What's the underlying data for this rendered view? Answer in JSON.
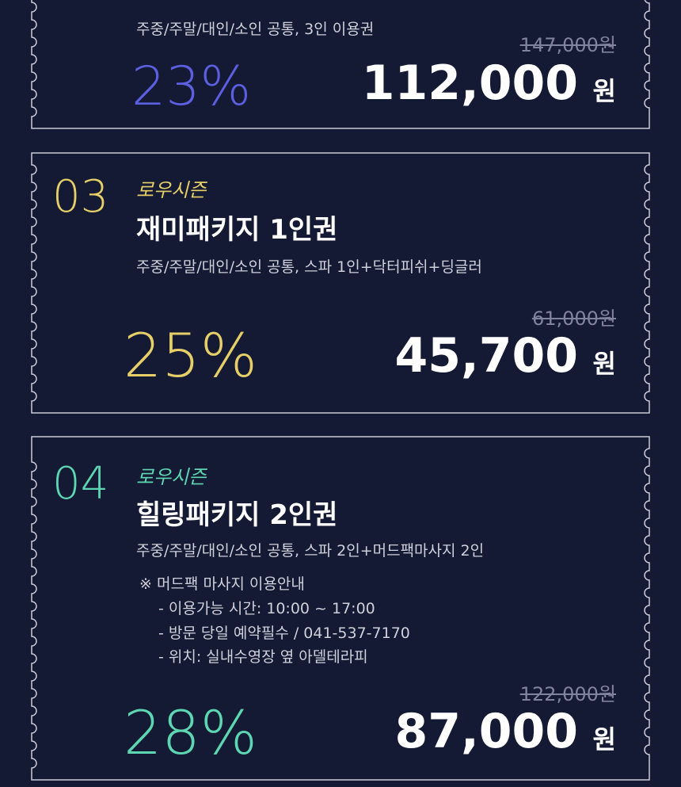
{
  "cards": [
    {
      "description": "주중/주말/대인/소인 공통, 3인 이용권",
      "original_price": "147,000원",
      "price": "112,000",
      "price_unit": "원",
      "discount": "23%"
    },
    {
      "number": "03",
      "tag": "로우시즌",
      "title": "재미패키지 1인권",
      "description": "주중/주말/대인/소인 공통, 스파 1인+닥터피쉬+딩글러",
      "original_price": "61,000원",
      "price": "45,700",
      "price_unit": "원",
      "discount": "25%"
    },
    {
      "number": "04",
      "tag": "로우시즌",
      "title": "힐링패키지 2인권",
      "description": "주중/주말/대인/소인 공통, 스파 2인+머드팩마사지 2인",
      "notes": [
        "※ 머드팩 마사지 이용안내",
        "- 이용가능 시간: 10:00 ~ 17:00",
        "- 방문 당일 예약필수 / 041-537-7170",
        "- 위치: 실내수영장 옆 아델테라피"
      ],
      "original_price": "122,000원",
      "price": "87,000",
      "price_unit": "원",
      "discount": "28%"
    }
  ]
}
